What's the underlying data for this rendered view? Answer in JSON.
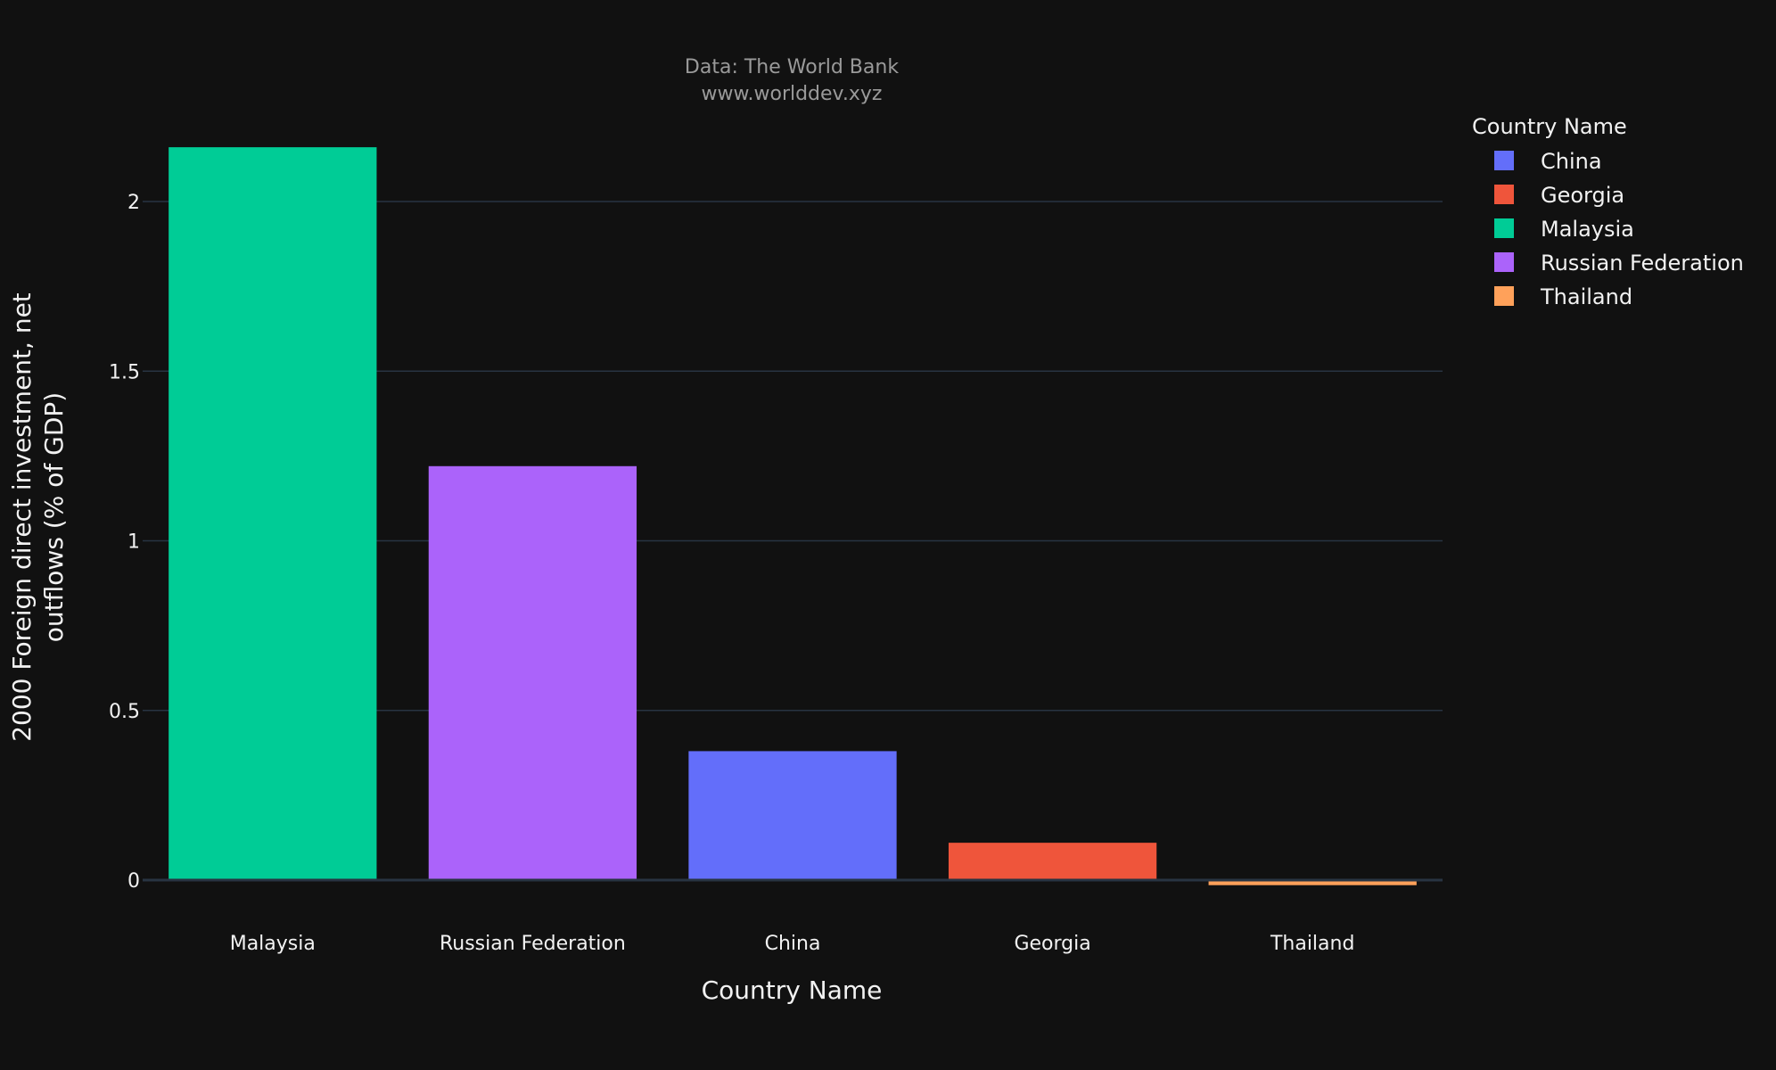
{
  "chart_data": {
    "type": "bar",
    "subtitle_lines": [
      "Data: The World Bank",
      "www.worlddev.xyz"
    ],
    "xlabel": "Country Name",
    "ylabel_lines": [
      "2000 Foreign direct investment, net",
      "outflows (% of GDP)"
    ],
    "categories": [
      "Malaysia",
      "Russian Federation",
      "China",
      "Georgia",
      "Thailand"
    ],
    "values": [
      2.16,
      1.22,
      0.38,
      0.11,
      -0.015
    ],
    "bar_colors": [
      "#00cc96",
      "#ab63fa",
      "#636efa",
      "#ef553b",
      "#ffa15a"
    ],
    "ylim": [
      -0.05,
      2.3
    ],
    "yticks": [
      0,
      0.5,
      1,
      1.5,
      2
    ],
    "ytick_labels": [
      "0",
      "0.5",
      "1",
      "1.5",
      "2"
    ],
    "grid": true,
    "legend": {
      "title": "Country Name",
      "placement": "top-right",
      "items": [
        {
          "label": "China",
          "color": "#636efa"
        },
        {
          "label": "Georgia",
          "color": "#ef553b"
        },
        {
          "label": "Malaysia",
          "color": "#00cc96"
        },
        {
          "label": "Russian Federation",
          "color": "#ab63fa"
        },
        {
          "label": "Thailand",
          "color": "#ffa15a"
        }
      ]
    }
  }
}
